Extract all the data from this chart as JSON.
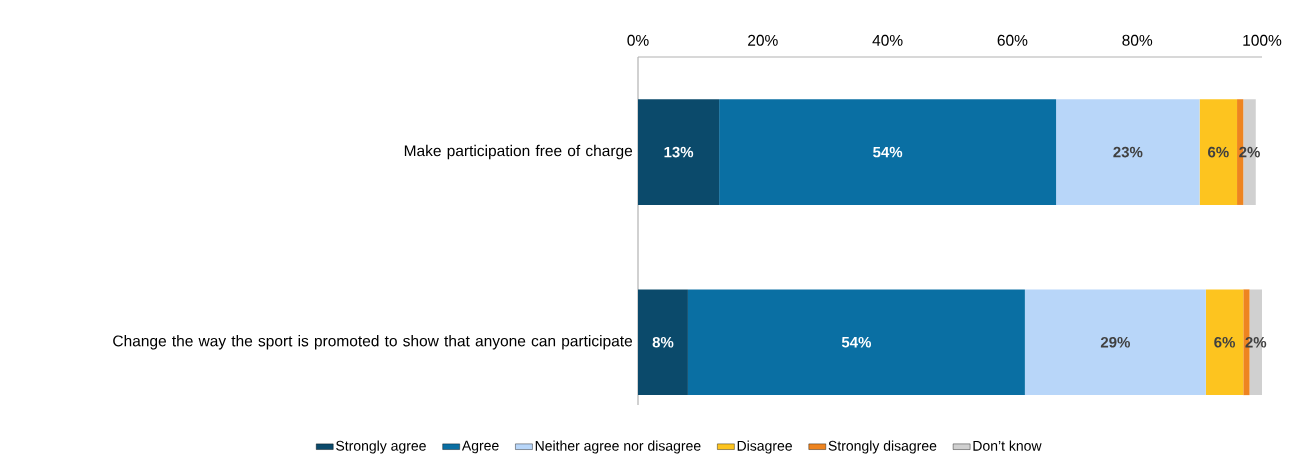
{
  "chart_data": {
    "type": "bar",
    "orientation": "horizontal",
    "stacked": true,
    "categories": [
      "Make participation free of charge",
      "Change the way the sport is promoted to show that anyone can participate"
    ],
    "series": [
      {
        "name": "Strongly agree",
        "color": "#0b4a6b",
        "values": [
          13,
          8
        ],
        "value_labels": [
          "13%",
          "8%"
        ]
      },
      {
        "name": "Agree",
        "color": "#0a6fa3",
        "values": [
          54,
          54
        ],
        "value_labels": [
          "54%",
          "54%"
        ]
      },
      {
        "name": "Neither agree nor disagree",
        "color": "#b8d6f9",
        "values": [
          23,
          29
        ],
        "value_labels": [
          "23%",
          "29%"
        ]
      },
      {
        "name": "Disagree",
        "color": "#fdc41f",
        "values": [
          6,
          6
        ],
        "value_labels": [
          "6%",
          "6%"
        ]
      },
      {
        "name": "Strongly disagree",
        "color": "#ee8420",
        "values": [
          1,
          1
        ],
        "value_labels": [
          null,
          null
        ]
      },
      {
        "name": "Don’t know",
        "color": "#d0d0d0",
        "values": [
          2,
          2
        ],
        "value_labels": [
          "2%",
          "2%"
        ]
      }
    ],
    "xlim": [
      0,
      100
    ],
    "xticks": [
      {
        "value": 0,
        "label": "0%"
      },
      {
        "value": 20,
        "label": "20%"
      },
      {
        "value": 40,
        "label": "40%"
      },
      {
        "value": 60,
        "label": "60%"
      },
      {
        "value": 80,
        "label": "80%"
      },
      {
        "value": 100,
        "label": "100%"
      }
    ],
    "legend": "bottom",
    "grid": false
  }
}
